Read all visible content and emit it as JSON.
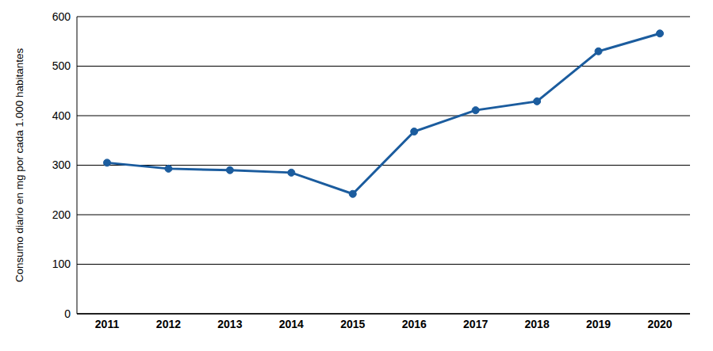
{
  "chart_data": {
    "type": "line",
    "y_label": "Consumo diario en mg por cada 1.000 habitantes",
    "categories": [
      "2011",
      "2012",
      "2013",
      "2014",
      "2015",
      "2016",
      "2017",
      "2018",
      "2019",
      "2020"
    ],
    "values": [
      305,
      293,
      290,
      285,
      242,
      368,
      411,
      429,
      530,
      566
    ],
    "color": "#1b5c9e",
    "marker": "circle",
    "ylim": [
      0,
      600
    ],
    "yticks": [
      0,
      100,
      200,
      300,
      400,
      500,
      600
    ],
    "grid": true
  }
}
